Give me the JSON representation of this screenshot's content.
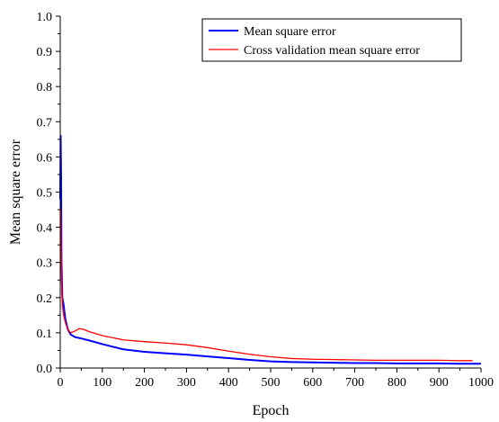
{
  "chart_data": {
    "type": "line",
    "xlabel": "Epoch",
    "ylabel": "Mean square error",
    "xlim": [
      0,
      1000
    ],
    "ylim": [
      0,
      1.0
    ],
    "x_ticks": [
      "0",
      "100",
      "200",
      "300",
      "400",
      "500",
      "600",
      "700",
      "800",
      "900",
      "1000"
    ],
    "y_ticks": [
      "0.0",
      "0.1",
      "0.2",
      "0.3",
      "0.4",
      "0.5",
      "0.6",
      "0.7",
      "0.8",
      "0.9",
      "1.0"
    ],
    "grid": false,
    "legend_position": "top-right",
    "series": [
      {
        "name": "Mean square error",
        "color": "#0000ff",
        "x": [
          0,
          1,
          2,
          3,
          5,
          8,
          12,
          18,
          25,
          35,
          50,
          70,
          100,
          150,
          200,
          250,
          300,
          350,
          400,
          450,
          500,
          550,
          600,
          650,
          700,
          750,
          800,
          850,
          900,
          950,
          1000
        ],
        "y": [
          0.48,
          0.66,
          0.55,
          0.3,
          0.2,
          0.18,
          0.14,
          0.11,
          0.095,
          0.088,
          0.084,
          0.078,
          0.068,
          0.053,
          0.046,
          0.042,
          0.038,
          0.033,
          0.028,
          0.023,
          0.019,
          0.017,
          0.016,
          0.015,
          0.014,
          0.014,
          0.013,
          0.013,
          0.013,
          0.012,
          0.012
        ]
      },
      {
        "name": "Cross validation mean square error",
        "color": "#ff0000",
        "x": [
          0,
          1,
          2,
          3,
          5,
          8,
          12,
          18,
          25,
          35,
          45,
          55,
          70,
          100,
          150,
          200,
          250,
          300,
          350,
          400,
          450,
          500,
          550,
          600,
          650,
          700,
          750,
          800,
          850,
          900,
          950,
          980
        ],
        "y": [
          0.4,
          0.45,
          0.35,
          0.25,
          0.18,
          0.15,
          0.13,
          0.11,
          0.1,
          0.105,
          0.112,
          0.11,
          0.103,
          0.092,
          0.08,
          0.075,
          0.071,
          0.066,
          0.058,
          0.048,
          0.039,
          0.032,
          0.027,
          0.025,
          0.024,
          0.023,
          0.022,
          0.022,
          0.022,
          0.022,
          0.021,
          0.021
        ]
      }
    ]
  }
}
